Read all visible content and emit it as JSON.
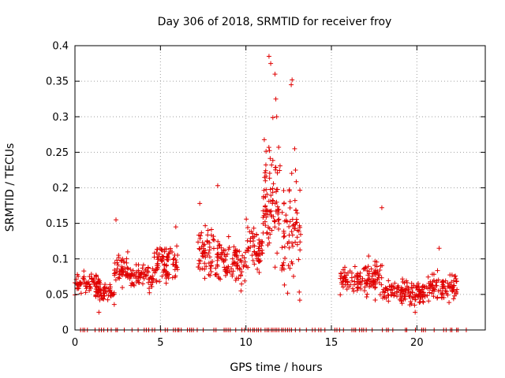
{
  "chart_data": {
    "type": "scatter",
    "title": "Day 306 of 2018, SRMTID for receiver froy",
    "xlabel": "GPS time / hours",
    "ylabel": "SRMTID / TECUs",
    "xlim": [
      0,
      24
    ],
    "ylim": [
      0,
      0.4
    ],
    "x_ticks": [
      0,
      5,
      10,
      15,
      20
    ],
    "x_tick_labels": [
      "0",
      "5",
      "10",
      "15",
      "20"
    ],
    "y_ticks": [
      0,
      0.05,
      0.1,
      0.15,
      0.2,
      0.25,
      0.3,
      0.35,
      0.4
    ],
    "y_tick_labels": [
      "0",
      "0.05",
      "0.1",
      "0.15",
      "0.2",
      "0.25",
      "0.3",
      "0.35",
      "0.4"
    ],
    "grid": true,
    "marker": "+",
    "color": "#e00000",
    "segments": [
      {
        "x0": 0.0,
        "x1": 1.5,
        "base": 0.065,
        "amp": 0.02,
        "n": 70
      },
      {
        "x0": 1.2,
        "x1": 2.3,
        "base": 0.05,
        "amp": 0.015,
        "n": 50
      },
      {
        "x0": 2.3,
        "x1": 3.2,
        "base": 0.085,
        "amp": 0.03,
        "n": 50
      },
      {
        "x0": 3.2,
        "x1": 4.6,
        "base": 0.075,
        "amp": 0.02,
        "n": 70
      },
      {
        "x0": 4.6,
        "x1": 6.0,
        "base": 0.095,
        "amp": 0.035,
        "n": 90
      },
      {
        "x0": 7.2,
        "x1": 8.2,
        "base": 0.11,
        "amp": 0.04,
        "n": 60
      },
      {
        "x0": 8.2,
        "x1": 10.0,
        "base": 0.095,
        "amp": 0.035,
        "n": 100
      },
      {
        "x0": 10.0,
        "x1": 11.0,
        "base": 0.115,
        "amp": 0.04,
        "n": 60
      },
      {
        "x0": 11.0,
        "x1": 12.0,
        "base": 0.19,
        "amp": 0.1,
        "n": 90
      },
      {
        "x0": 12.0,
        "x1": 13.2,
        "base": 0.14,
        "amp": 0.08,
        "n": 70
      },
      {
        "x0": 15.5,
        "x1": 16.8,
        "base": 0.07,
        "amp": 0.02,
        "n": 60
      },
      {
        "x0": 16.8,
        "x1": 18.0,
        "base": 0.075,
        "amp": 0.03,
        "n": 70
      },
      {
        "x0": 18.0,
        "x1": 19.5,
        "base": 0.055,
        "amp": 0.02,
        "n": 70
      },
      {
        "x0": 19.5,
        "x1": 20.5,
        "base": 0.05,
        "amp": 0.02,
        "n": 60
      },
      {
        "x0": 20.5,
        "x1": 22.4,
        "base": 0.06,
        "amp": 0.02,
        "n": 90
      }
    ],
    "outliers": [
      {
        "x": 11.35,
        "y": 0.385
      },
      {
        "x": 11.45,
        "y": 0.375
      },
      {
        "x": 11.7,
        "y": 0.36
      },
      {
        "x": 12.7,
        "y": 0.352
      },
      {
        "x": 12.65,
        "y": 0.345
      },
      {
        "x": 11.75,
        "y": 0.325
      },
      {
        "x": 11.8,
        "y": 0.3
      },
      {
        "x": 12.85,
        "y": 0.255
      },
      {
        "x": 12.9,
        "y": 0.225
      },
      {
        "x": 8.35,
        "y": 0.203
      },
      {
        "x": 7.3,
        "y": 0.178
      },
      {
        "x": 17.95,
        "y": 0.172
      },
      {
        "x": 2.4,
        "y": 0.155
      },
      {
        "x": 21.3,
        "y": 0.115
      },
      {
        "x": 5.9,
        "y": 0.145
      },
      {
        "x": 13.15,
        "y": 0.042
      },
      {
        "x": 1.4,
        "y": 0.025
      },
      {
        "x": 19.9,
        "y": 0.025
      }
    ],
    "zero_ranges": [
      [
        0.2,
        7.0
      ],
      [
        7.0,
        13.4
      ],
      [
        13.4,
        22.9
      ]
    ]
  }
}
